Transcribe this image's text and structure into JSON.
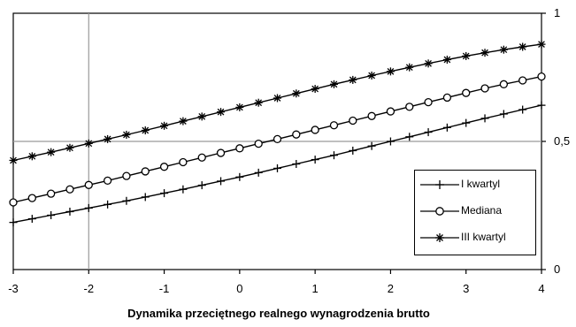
{
  "chart_data": {
    "type": "line",
    "xlabel": "Dynamika przeciętnego realnego wynagrodzenia brutto",
    "ylabel": "",
    "xlim": [
      -3,
      4
    ],
    "ylim": [
      0,
      1
    ],
    "x_ticks": [
      "-3",
      "-2",
      "-1",
      "0",
      "1",
      "2",
      "3",
      "4"
    ],
    "y_ticks": [
      "0",
      "0,5",
      "1"
    ],
    "reference_lines": {
      "x": -2,
      "y": 0.5
    },
    "legend_position": "right",
    "x": [
      -3,
      -2.75,
      -2.5,
      -2.25,
      -2,
      -1.75,
      -1.5,
      -1.25,
      -1,
      -0.75,
      -0.5,
      -0.25,
      0,
      0.25,
      0.5,
      0.75,
      1,
      1.25,
      1.5,
      1.75,
      2,
      2.25,
      2.5,
      2.75,
      3,
      3.25,
      3.5,
      3.75,
      4
    ],
    "series": [
      {
        "name": "I kwartyl",
        "marker": "plus",
        "values": [
          0.184,
          0.198,
          0.212,
          0.226,
          0.24,
          0.254,
          0.268,
          0.283,
          0.298,
          0.313,
          0.329,
          0.345,
          0.361,
          0.378,
          0.395,
          0.412,
          0.429,
          0.446,
          0.464,
          0.482,
          0.5,
          0.518,
          0.536,
          0.554,
          0.572,
          0.59,
          0.607,
          0.624,
          0.641
        ]
      },
      {
        "name": "Mediana",
        "marker": "circle",
        "values": [
          0.262,
          0.279,
          0.296,
          0.313,
          0.33,
          0.347,
          0.365,
          0.383,
          0.401,
          0.419,
          0.437,
          0.455,
          0.473,
          0.491,
          0.509,
          0.527,
          0.545,
          0.563,
          0.581,
          0.599,
          0.617,
          0.635,
          0.653,
          0.671,
          0.689,
          0.707,
          0.723,
          0.738,
          0.753
        ]
      },
      {
        "name": "III kwartyl",
        "marker": "asterisk",
        "values": [
          0.426,
          0.442,
          0.458,
          0.475,
          0.492,
          0.509,
          0.526,
          0.543,
          0.561,
          0.579,
          0.597,
          0.615,
          0.633,
          0.651,
          0.669,
          0.687,
          0.705,
          0.723,
          0.74,
          0.757,
          0.773,
          0.789,
          0.804,
          0.819,
          0.833,
          0.846,
          0.858,
          0.869,
          0.879
        ]
      }
    ]
  }
}
